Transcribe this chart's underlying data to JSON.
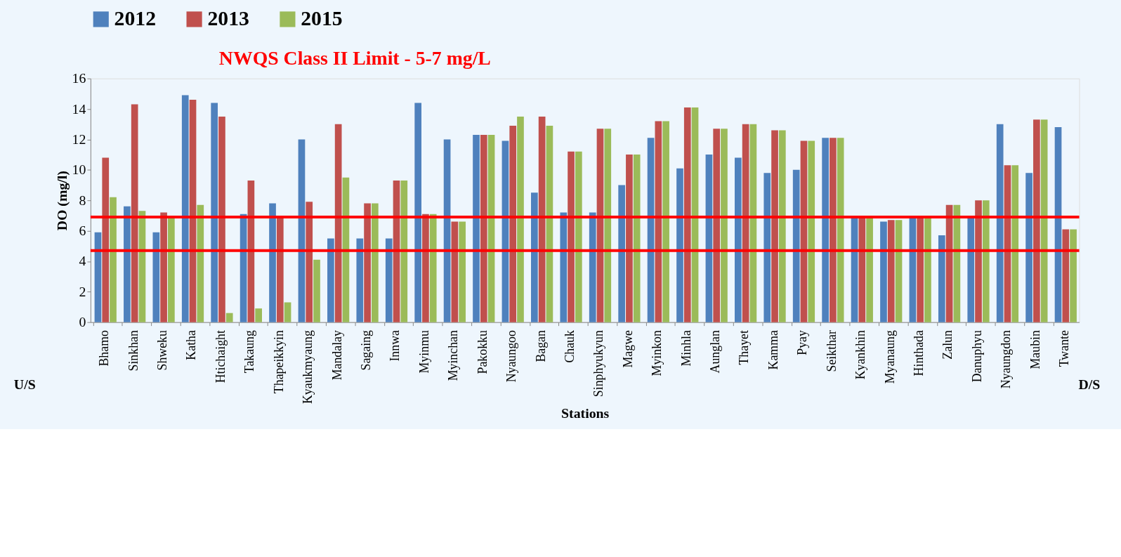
{
  "chart_data": {
    "type": "bar",
    "xlabel": "Stations",
    "ylabel": "DO (mg/l)",
    "categories": [
      "Bhamo",
      "Sinkhan",
      "Shweku",
      "Katha",
      "Htichaight",
      "Takaung",
      "Thapeikkyin",
      "Kyaukmyaung",
      "Mandalay",
      "Sagaing",
      "Innwa",
      "Myinmu",
      "Myinchan",
      "Pakokku",
      "Nyaungoo",
      "Bagan",
      "Chauk",
      "Sinphyukyun",
      "Magwe",
      "Myinkon",
      "Minhla",
      "Aunglan",
      "Thayet",
      "Kamma",
      "Pyay",
      "Seikthar",
      "Kyankhin",
      "Myanaung",
      "Hinthada",
      "Zalun",
      "Danuphyu",
      "Nyaungdon",
      "Maubin",
      "Twante"
    ],
    "series": [
      {
        "name": "2012",
        "color": "#4f81bd",
        "values": [
          5.9,
          7.6,
          5.9,
          14.9,
          14.4,
          7.1,
          7.8,
          12.0,
          5.5,
          5.5,
          5.5,
          14.4,
          12.0,
          12.3,
          11.9,
          8.5,
          7.2,
          7.2,
          9.0,
          12.1,
          10.1,
          11.0,
          10.8,
          9.8,
          10.0,
          12.1,
          6.9,
          6.6,
          6.9,
          5.7,
          6.9,
          13.0,
          9.8,
          12.8
        ]
      },
      {
        "name": "2013",
        "color": "#c0504d",
        "values": [
          10.8,
          14.3,
          7.2,
          14.6,
          13.5,
          9.3,
          6.9,
          7.9,
          13.0,
          7.8,
          9.3,
          7.1,
          6.6,
          12.3,
          12.9,
          13.5,
          11.2,
          12.7,
          11.0,
          13.2,
          14.1,
          12.7,
          13.0,
          12.6,
          11.9,
          12.1,
          6.9,
          6.7,
          6.9,
          7.7,
          8.0,
          10.3,
          13.3,
          6.1
        ]
      },
      {
        "name": "2015",
        "color": "#9bbb59",
        "values": [
          8.2,
          7.3,
          6.9,
          7.7,
          0.6,
          0.9,
          1.3,
          4.1,
          9.5,
          7.8,
          9.3,
          7.1,
          6.6,
          12.3,
          13.5,
          12.9,
          11.2,
          12.7,
          11.0,
          13.2,
          14.1,
          12.7,
          13.0,
          12.6,
          11.9,
          12.1,
          6.9,
          6.7,
          6.9,
          7.7,
          8.0,
          10.3,
          13.3,
          6.1
        ]
      }
    ],
    "ylim": [
      0,
      16
    ],
    "yticks": [
      0,
      2,
      4,
      6,
      8,
      10,
      12,
      14,
      16
    ],
    "ref_lines": [
      {
        "axis": "y",
        "value": 6.9,
        "color": "#ff0000"
      },
      {
        "axis": "y",
        "value": 4.7,
        "color": "#ff0000"
      }
    ],
    "annotations": [
      "NWQS Class II Limit - 5-7 mg/L",
      "U/S",
      "D/S"
    ],
    "legend": "top",
    "grid": false
  }
}
